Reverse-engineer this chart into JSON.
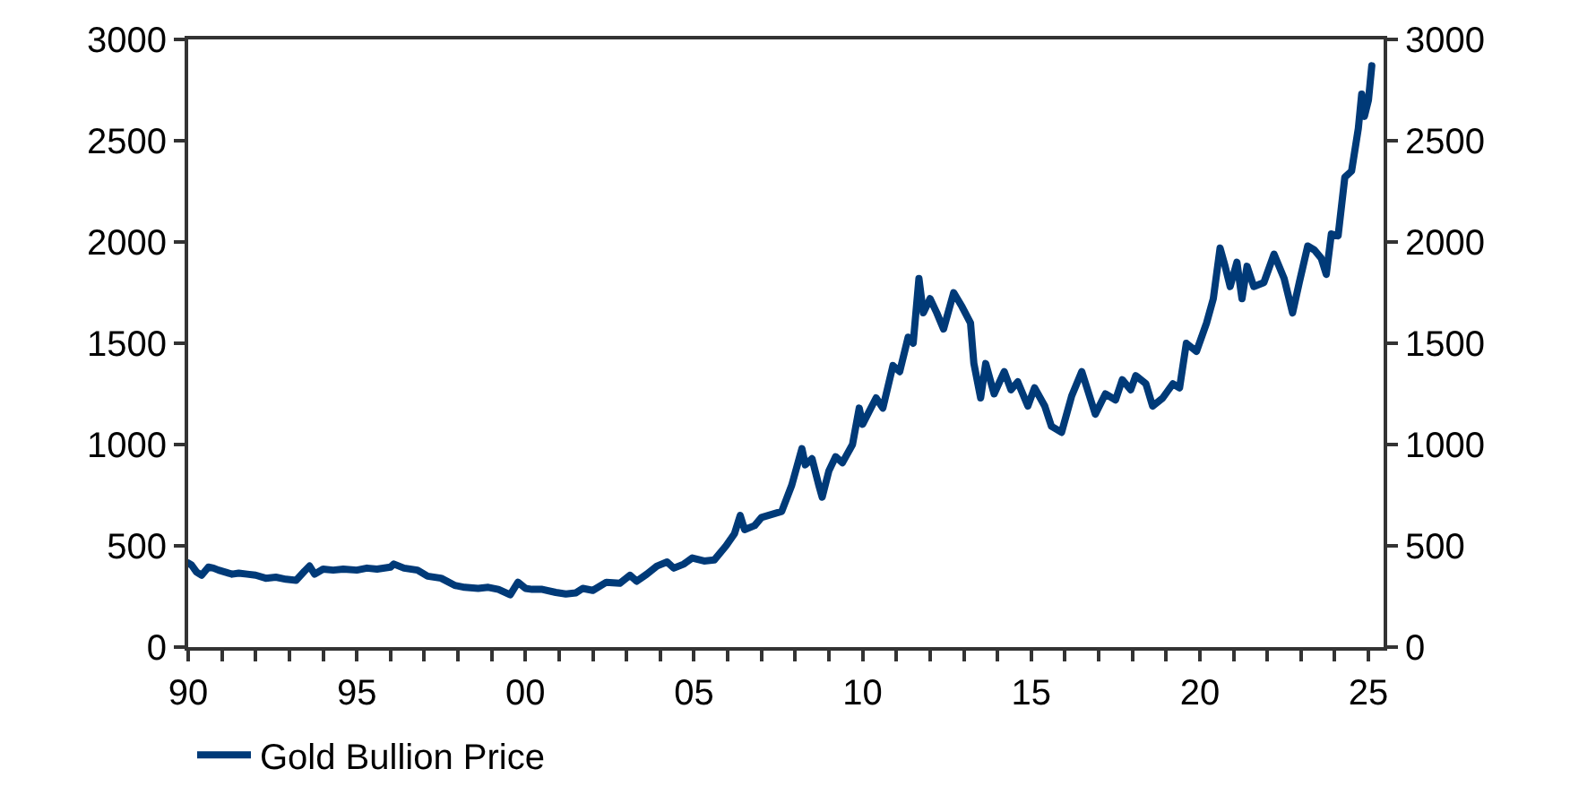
{
  "chart_data": {
    "type": "line",
    "x": [
      1990.0,
      1990.1,
      1990.25,
      1990.4,
      1990.6,
      1990.75,
      1990.9,
      1991.1,
      1991.3,
      1991.5,
      1991.75,
      1992.0,
      1992.3,
      1992.6,
      1992.9,
      1993.2,
      1993.45,
      1993.6,
      1993.75,
      1994.0,
      1994.3,
      1994.6,
      1995.0,
      1995.3,
      1995.6,
      1996.0,
      1996.1,
      1996.4,
      1996.8,
      1997.1,
      1997.5,
      1997.9,
      1998.2,
      1998.6,
      1998.9,
      1999.2,
      1999.55,
      1999.78,
      2000.0,
      2000.2,
      2000.5,
      2000.9,
      2001.2,
      2001.5,
      2001.7,
      2002.0,
      2002.4,
      2002.8,
      2003.1,
      2003.3,
      2003.6,
      2003.9,
      2004.2,
      2004.4,
      2004.7,
      2004.95,
      2005.3,
      2005.6,
      2005.95,
      2006.2,
      2006.37,
      2006.5,
      2006.8,
      2007.0,
      2007.4,
      2007.6,
      2007.9,
      2008.2,
      2008.3,
      2008.5,
      2008.7,
      2008.8,
      2009.0,
      2009.2,
      2009.4,
      2009.7,
      2009.9,
      2010.0,
      2010.4,
      2010.6,
      2010.9,
      2011.1,
      2011.35,
      2011.5,
      2011.67,
      2011.8,
      2012.0,
      2012.2,
      2012.4,
      2012.7,
      2012.95,
      2013.2,
      2013.3,
      2013.5,
      2013.65,
      2013.9,
      2014.2,
      2014.4,
      2014.6,
      2014.9,
      2015.1,
      2015.4,
      2015.6,
      2015.9,
      2016.2,
      2016.5,
      2016.9,
      2017.2,
      2017.5,
      2017.7,
      2017.95,
      2018.1,
      2018.4,
      2018.6,
      2018.9,
      2019.2,
      2019.4,
      2019.6,
      2019.9,
      2020.2,
      2020.4,
      2020.6,
      2020.75,
      2020.9,
      2021.1,
      2021.25,
      2021.4,
      2021.6,
      2021.9,
      2022.2,
      2022.5,
      2022.75,
      2022.95,
      2023.2,
      2023.4,
      2023.6,
      2023.75,
      2023.9,
      2024.1,
      2024.3,
      2024.5,
      2024.7,
      2024.8,
      2024.88,
      2025.0,
      2025.1
    ],
    "series": [
      {
        "name": "Gold Bullion Price",
        "color": "#003a78",
        "values": [
          415,
          405,
          370,
          355,
          395,
          390,
          380,
          370,
          360,
          365,
          360,
          355,
          340,
          345,
          335,
          330,
          375,
          400,
          360,
          385,
          380,
          385,
          380,
          390,
          385,
          395,
          410,
          390,
          380,
          350,
          340,
          305,
          295,
          290,
          295,
          285,
          258,
          320,
          290,
          285,
          285,
          270,
          262,
          268,
          290,
          280,
          320,
          315,
          355,
          325,
          360,
          400,
          420,
          390,
          410,
          440,
          425,
          430,
          500,
          560,
          650,
          580,
          600,
          640,
          660,
          670,
          800,
          980,
          900,
          930,
          800,
          740,
          870,
          940,
          910,
          1000,
          1180,
          1100,
          1230,
          1180,
          1390,
          1360,
          1530,
          1500,
          1820,
          1650,
          1720,
          1650,
          1570,
          1750,
          1680,
          1600,
          1400,
          1230,
          1400,
          1250,
          1360,
          1270,
          1310,
          1190,
          1280,
          1190,
          1090,
          1060,
          1240,
          1360,
          1150,
          1250,
          1220,
          1320,
          1270,
          1340,
          1300,
          1190,
          1230,
          1300,
          1280,
          1500,
          1460,
          1600,
          1720,
          1970,
          1880,
          1780,
          1900,
          1720,
          1880,
          1780,
          1800,
          1940,
          1820,
          1650,
          1800,
          1980,
          1960,
          1920,
          1840,
          2040,
          2030,
          2320,
          2350,
          2560,
          2730,
          2620,
          2700,
          2870
        ]
      }
    ],
    "xlim": [
      1990,
      2025.45
    ],
    "xticks": [
      {
        "value": 1990,
        "label": "90"
      },
      {
        "value": 1991,
        "label": null
      },
      {
        "value": 1992,
        "label": null
      },
      {
        "value": 1993,
        "label": null
      },
      {
        "value": 1994,
        "label": null
      },
      {
        "value": 1995,
        "label": "95"
      },
      {
        "value": 1996,
        "label": null
      },
      {
        "value": 1997,
        "label": null
      },
      {
        "value": 1998,
        "label": null
      },
      {
        "value": 1999,
        "label": null
      },
      {
        "value": 2000,
        "label": "00"
      },
      {
        "value": 2001,
        "label": null
      },
      {
        "value": 2002,
        "label": null
      },
      {
        "value": 2003,
        "label": null
      },
      {
        "value": 2004,
        "label": null
      },
      {
        "value": 2005,
        "label": "05"
      },
      {
        "value": 2006,
        "label": null
      },
      {
        "value": 2007,
        "label": null
      },
      {
        "value": 2008,
        "label": null
      },
      {
        "value": 2009,
        "label": null
      },
      {
        "value": 2010,
        "label": "10"
      },
      {
        "value": 2011,
        "label": null
      },
      {
        "value": 2012,
        "label": null
      },
      {
        "value": 2013,
        "label": null
      },
      {
        "value": 2014,
        "label": null
      },
      {
        "value": 2015,
        "label": "15"
      },
      {
        "value": 2016,
        "label": null
      },
      {
        "value": 2017,
        "label": null
      },
      {
        "value": 2018,
        "label": null
      },
      {
        "value": 2019,
        "label": null
      },
      {
        "value": 2020,
        "label": "20"
      },
      {
        "value": 2021,
        "label": null
      },
      {
        "value": 2022,
        "label": null
      },
      {
        "value": 2023,
        "label": null
      },
      {
        "value": 2024,
        "label": null
      },
      {
        "value": 2025,
        "label": "25"
      }
    ],
    "ylim": [
      0,
      3000
    ],
    "yticks": [
      0,
      500,
      1000,
      1500,
      2000,
      2500,
      3000
    ],
    "y2lim": [
      0,
      3000
    ],
    "y2ticks": [
      0,
      500,
      1000,
      1500,
      2000,
      2500,
      3000
    ],
    "legend": "bottom left",
    "marker": "none",
    "line_style": "solid"
  }
}
